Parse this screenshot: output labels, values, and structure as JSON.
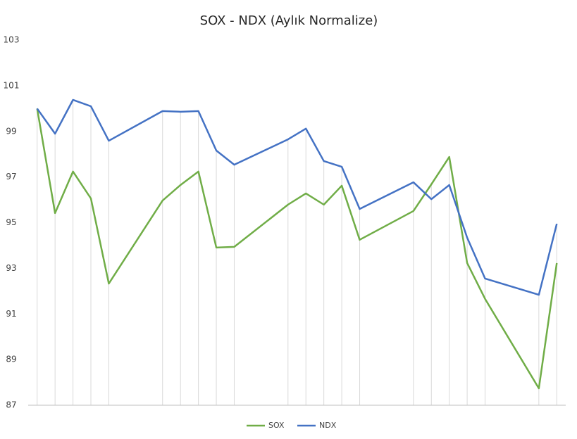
{
  "chart_data": {
    "type": "line",
    "title": "SOX - NDX (Aylık Normalize)",
    "x": [
      0,
      1,
      2,
      3,
      4,
      7,
      8,
      9,
      10,
      11,
      14,
      15,
      16,
      17,
      18,
      21,
      22,
      23,
      24,
      25,
      28,
      29
    ],
    "xlim": [
      -0.5,
      29.5
    ],
    "ylim": [
      87,
      103
    ],
    "yticks": [
      87,
      89,
      91,
      93,
      95,
      97,
      99,
      101,
      103
    ],
    "drop_lines": true,
    "legend": "bottom",
    "series": [
      {
        "name": "SOX",
        "color": "#70ad47",
        "values": [
          100.0,
          95.42,
          97.24,
          96.06,
          92.33,
          95.97,
          96.65,
          97.24,
          93.91,
          93.94,
          95.79,
          96.28,
          95.79,
          96.62,
          94.25,
          95.51,
          96.68,
          97.88,
          93.23,
          91.66,
          87.74,
          93.23
        ]
      },
      {
        "name": "NDX",
        "color": "#4472c4",
        "values": [
          100.0,
          98.9,
          100.38,
          100.1,
          98.59,
          99.89,
          99.86,
          99.89,
          98.16,
          97.54,
          98.65,
          99.12,
          97.7,
          97.45,
          95.6,
          96.77,
          96.03,
          96.65,
          94.34,
          92.55,
          91.84,
          94.95
        ]
      }
    ]
  }
}
